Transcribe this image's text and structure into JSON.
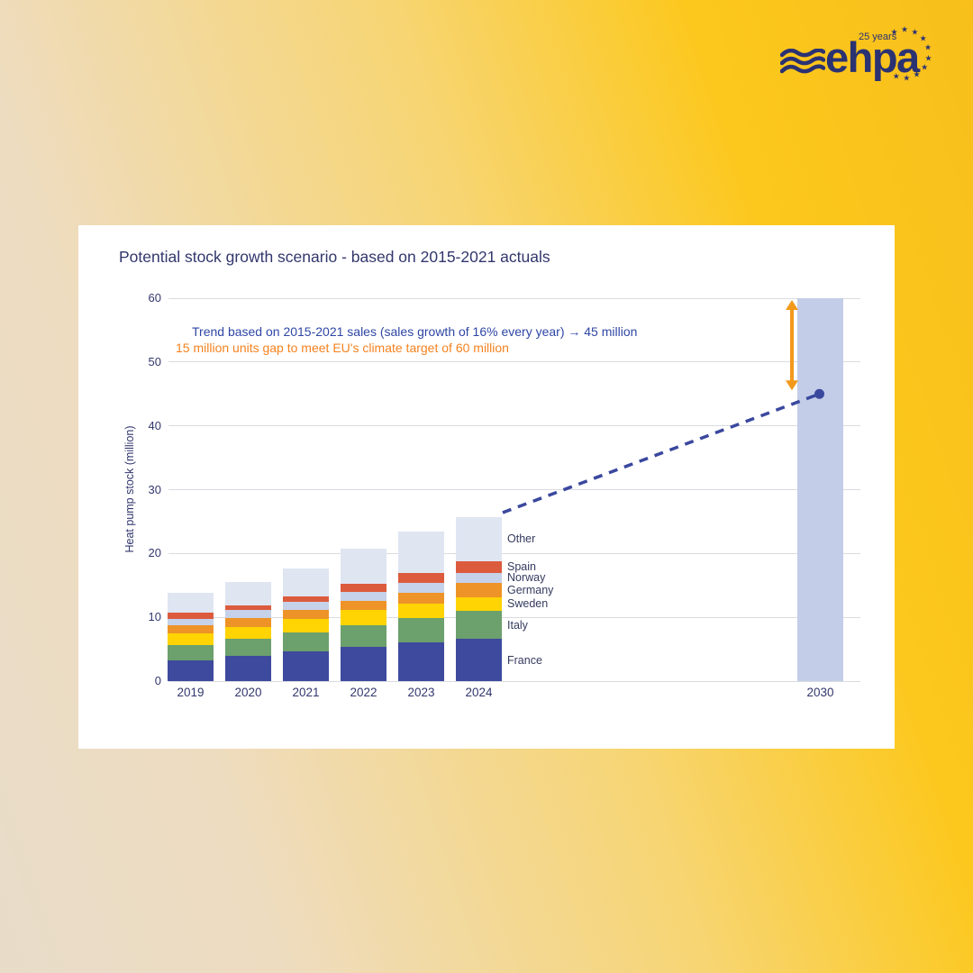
{
  "logo": {
    "wordmark": "ehpa",
    "tagline": "25 years",
    "color": "#2b3272",
    "star_count": 10
  },
  "chart_data": {
    "type": "bar",
    "stacked": true,
    "title": "Potential stock growth scenario - based on 2015-2021 actuals",
    "ylabel": "Heat pump stock (million)",
    "ylim": [
      0,
      60
    ],
    "yticks": [
      0,
      10,
      20,
      30,
      40,
      50,
      60
    ],
    "grid": "horizontal",
    "categories": [
      "2019",
      "2020",
      "2021",
      "2022",
      "2023",
      "2024"
    ],
    "series": [
      {
        "name": "France",
        "color": "#3e4a9d",
        "values": [
          3.3,
          4.0,
          4.6,
          5.3,
          6.1,
          6.6
        ]
      },
      {
        "name": "Italy",
        "color": "#6ca06d",
        "values": [
          2.4,
          2.6,
          3.0,
          3.5,
          3.8,
          4.4
        ]
      },
      {
        "name": "Sweden",
        "color": "#ffd402",
        "values": [
          1.8,
          1.9,
          2.2,
          2.4,
          2.3,
          2.2
        ]
      },
      {
        "name": "Germany",
        "color": "#ee9327",
        "values": [
          1.2,
          1.4,
          1.4,
          1.4,
          1.7,
          2.2
        ]
      },
      {
        "name": "Norway",
        "color": "#c6d1ea",
        "values": [
          1.0,
          1.2,
          1.2,
          1.4,
          1.5,
          1.6
        ]
      },
      {
        "name": "Spain",
        "color": "#dc5b3d",
        "values": [
          1.0,
          0.8,
          0.9,
          1.3,
          1.6,
          1.8
        ]
      },
      {
        "name": "Other",
        "color": "#e0e5f2",
        "values": [
          3.2,
          3.6,
          4.4,
          5.4,
          6.5,
          6.9
        ]
      }
    ],
    "totals": [
      13.9,
      15.5,
      17.7,
      20.7,
      23.5,
      25.7
    ],
    "target_bar": {
      "label": "2030",
      "value": 60,
      "color": "#c3cde8"
    },
    "trend_point": {
      "category": "2030",
      "value": 45,
      "color": "#3a489e"
    },
    "gap_arrow": {
      "from": 60,
      "to": 45,
      "color": "#f2991c"
    },
    "annotations": [
      {
        "text": "Trend based on 2015-2021 sales (sales growth of 16% every year) → 45 million",
        "color": "#2f46a5"
      },
      {
        "text": "15 million units gap to meet EU's climate target of 60 million",
        "color": "#f5821f"
      }
    ],
    "legend_position": "inside-right-of-last-bar"
  }
}
